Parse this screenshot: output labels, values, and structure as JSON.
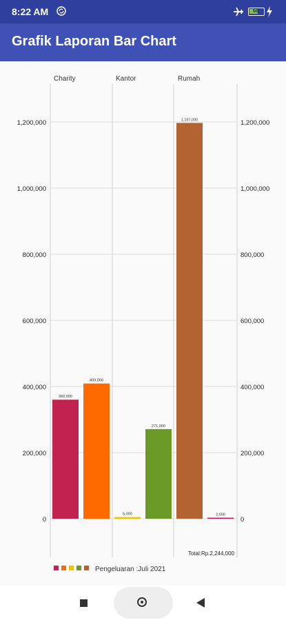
{
  "status_bar": {
    "time": "8:22 AM",
    "battery_level": "68",
    "icons": [
      "sync-icon",
      "airplane-icon",
      "battery-icon",
      "charging-icon"
    ]
  },
  "app_bar": {
    "title": "Grafik Laporan Bar Chart"
  },
  "colors": {
    "status_bar": "#2f3f9e",
    "app_bar": "#3f51b5",
    "bars": [
      "#c0234f",
      "#ff6a00",
      "#f2c200",
      "#6a9a25",
      "#b36332",
      "#c2185b"
    ]
  },
  "chart_data": {
    "type": "bar",
    "groups": [
      "Charity",
      "Kantor",
      "Rumah"
    ],
    "bars": [
      {
        "group": "Charity",
        "value": 360000,
        "label": "360,000"
      },
      {
        "group": "Charity",
        "value": 409000,
        "label": "409,000"
      },
      {
        "group": "Kantor",
        "value": 5000,
        "label": "5,000"
      },
      {
        "group": "Kantor",
        "value": 271000,
        "label": "271,000"
      },
      {
        "group": "Rumah",
        "value": 1197000,
        "label": "1,197,000"
      },
      {
        "group": "Rumah",
        "value": 2000,
        "label": "2,000"
      }
    ],
    "ylim": [
      0,
      1300000
    ],
    "y_ticks": [
      "0",
      "200,000",
      "400,000",
      "600,000",
      "800,000",
      "1,000,000",
      "1,200,000"
    ],
    "total_label": "Total:Rp.2,244,000",
    "legend_label": "Pengeluaran :Juli 2021",
    "legend_placement": "bottom-left",
    "grid": true
  },
  "nav_bar": {
    "icons": [
      "recent-apps-icon",
      "home-icon",
      "back-icon"
    ]
  }
}
